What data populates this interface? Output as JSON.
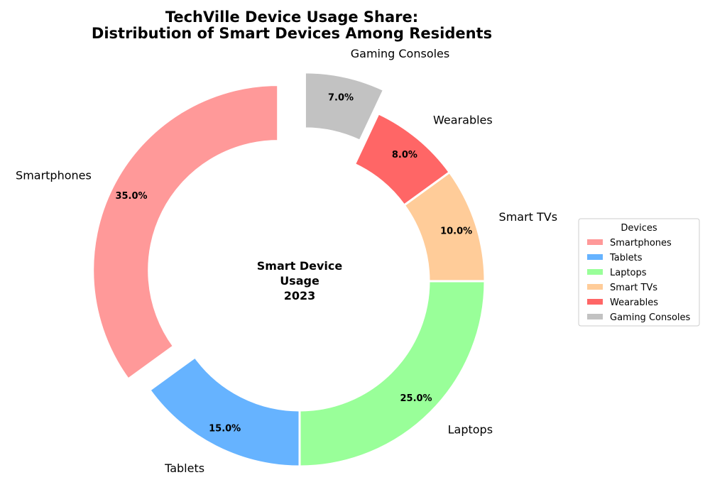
{
  "chart_data": {
    "type": "pie",
    "style": "donut",
    "title_lines": [
      "TechVille Device Usage Share:",
      "Distribution of Smart Devices Among Residents"
    ],
    "center_lines": [
      "Smart Device",
      "Usage",
      "2023"
    ],
    "legend": {
      "title": "Devices",
      "placement": "right"
    },
    "slices": [
      {
        "label": "Smartphones",
        "value": 35,
        "pct_label": "35.0%",
        "color": "#ff9999",
        "exploded": true
      },
      {
        "label": "Tablets",
        "value": 15,
        "pct_label": "15.0%",
        "color": "#66b3ff",
        "exploded": false
      },
      {
        "label": "Laptops",
        "value": 25,
        "pct_label": "25.0%",
        "color": "#99ff99",
        "exploded": false
      },
      {
        "label": "Smart TVs",
        "value": 10,
        "pct_label": "10.0%",
        "color": "#ffcc99",
        "exploded": false
      },
      {
        "label": "Wearables",
        "value": 8,
        "pct_label": "8.0%",
        "color": "#ff6666",
        "exploded": false
      },
      {
        "label": "Gaming Consoles",
        "value": 7,
        "pct_label": "7.0%",
        "color": "#c2c2c2",
        "exploded": true
      }
    ]
  }
}
